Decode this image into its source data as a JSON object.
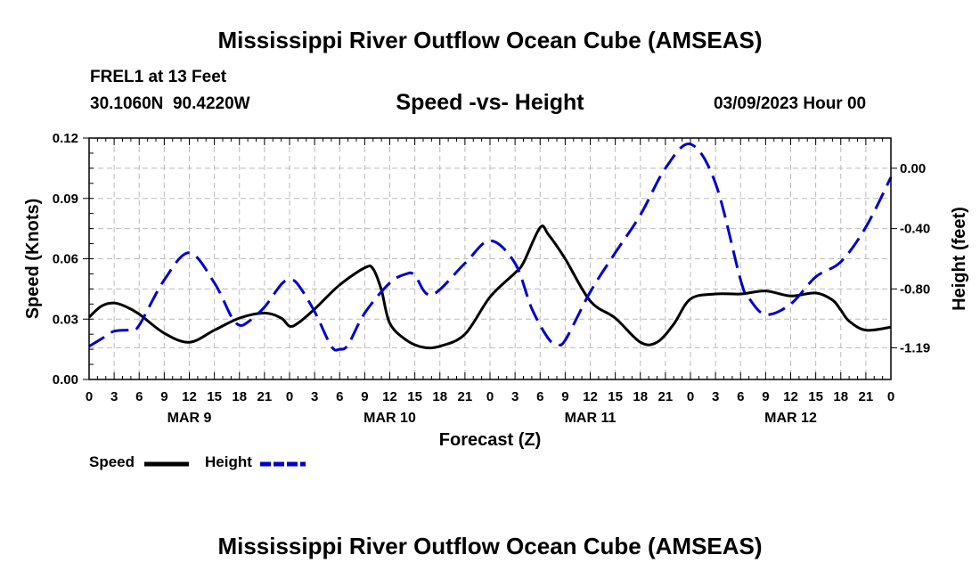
{
  "header": {
    "title": "Mississippi River Outflow Ocean Cube (AMSEAS)",
    "station": "FREL1 at 13 Feet",
    "coords": "30.1060N  90.4220W",
    "subtitle": "Speed -vs- Height",
    "date": "03/09/2023 Hour 00"
  },
  "footer": {
    "title": "Mississippi River Outflow Ocean Cube (AMSEAS)"
  },
  "colors": {
    "speed": "#000000",
    "height": "#0000cc",
    "grid": "#bbbbbb"
  },
  "chart_data": {
    "type": "line",
    "title": "Speed -vs- Height",
    "xlabel": "Forecast (Z)",
    "ylabel_left": "Speed (Knots)",
    "ylabel_right": "Height (feet)",
    "x_hours_range": [
      0,
      96
    ],
    "x_tick_labels": [
      "0",
      "3",
      "6",
      "9",
      "12",
      "15",
      "18",
      "21",
      "0",
      "3",
      "6",
      "9",
      "12",
      "15",
      "18",
      "21",
      "0",
      "3",
      "6",
      "9",
      "12",
      "15",
      "18",
      "21",
      "0",
      "3",
      "6",
      "9",
      "12",
      "15",
      "18",
      "21",
      "0"
    ],
    "day_labels": [
      {
        "label": "MAR 9",
        "hour": 12
      },
      {
        "label": "MAR 10",
        "hour": 36
      },
      {
        "label": "MAR 11",
        "hour": 60
      },
      {
        "label": "MAR 12",
        "hour": 84
      }
    ],
    "y_left": {
      "range": [
        0,
        0.12
      ],
      "ticks": [
        0,
        0.03,
        0.06,
        0.09,
        0.12
      ],
      "tick_labels": [
        "0.00",
        "0.03",
        "0.06",
        "0.09",
        "0.12"
      ]
    },
    "y_right": {
      "range": [
        -1.4,
        0.2
      ],
      "ticks": [
        -1.19,
        -0.8,
        -0.4,
        0.0
      ],
      "tick_labels": [
        "-1.19",
        "-0.80",
        "-0.40",
        "0.00"
      ]
    },
    "grid": true,
    "series": [
      {
        "name": "Speed",
        "axis": "left",
        "style": "solid",
        "x": [
          0,
          1.5,
          3,
          4.5,
          6,
          9,
          12,
          15,
          18,
          21,
          23,
          24,
          25,
          27,
          30,
          33,
          34,
          35,
          36,
          38,
          40,
          42,
          45,
          48,
          51,
          52,
          54,
          55,
          57,
          60,
          63,
          66,
          68,
          70,
          72,
          75,
          78,
          81,
          84,
          87,
          89,
          90,
          91,
          93,
          96
        ],
        "values": [
          0.031,
          0.0365,
          0.038,
          0.036,
          0.0325,
          0.023,
          0.0185,
          0.0245,
          0.0305,
          0.033,
          0.0305,
          0.0265,
          0.028,
          0.035,
          0.047,
          0.0555,
          0.055,
          0.0445,
          0.028,
          0.0195,
          0.016,
          0.0165,
          0.0225,
          0.041,
          0.053,
          0.058,
          0.0755,
          0.072,
          0.06,
          0.039,
          0.0305,
          0.0185,
          0.0185,
          0.0275,
          0.04,
          0.0425,
          0.0425,
          0.044,
          0.0415,
          0.043,
          0.0395,
          0.0345,
          0.029,
          0.0245,
          0.026
        ]
      },
      {
        "name": "Height",
        "axis": "right",
        "style": "dashed",
        "x": [
          0,
          1.5,
          3,
          5,
          6,
          9,
          12,
          15,
          17,
          18,
          19,
          21,
          23,
          24,
          25,
          27,
          29,
          30,
          31,
          33,
          36,
          38,
          39,
          41,
          45,
          48,
          51,
          53,
          55,
          56,
          57,
          60,
          63,
          66,
          69,
          72,
          75,
          78,
          79,
          81,
          84,
          87,
          90,
          93,
          96
        ],
        "values": [
          -1.18,
          -1.13,
          -1.08,
          -1.07,
          -1.04,
          -0.74,
          -0.56,
          -0.76,
          -0.98,
          -1.04,
          -1.02,
          -0.92,
          -0.77,
          -0.74,
          -0.77,
          -0.95,
          -1.18,
          -1.2,
          -1.17,
          -0.96,
          -0.76,
          -0.7,
          -0.71,
          -0.84,
          -0.63,
          -0.48,
          -0.63,
          -0.93,
          -1.13,
          -1.16,
          -1.14,
          -0.82,
          -0.56,
          -0.31,
          0.0,
          0.16,
          -0.1,
          -0.74,
          -0.86,
          -0.97,
          -0.9,
          -0.72,
          -0.62,
          -0.39,
          -0.06
        ]
      }
    ],
    "legend": [
      {
        "label": "Speed",
        "style": "solid"
      },
      {
        "label": "Height",
        "style": "dashed"
      }
    ]
  }
}
